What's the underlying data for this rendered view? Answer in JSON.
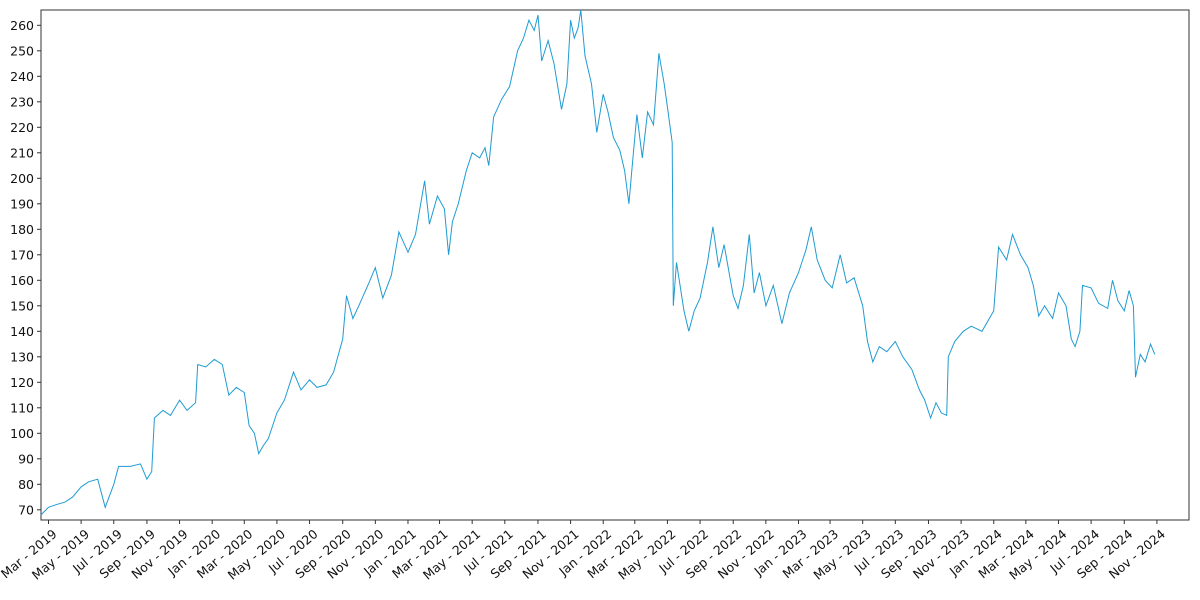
{
  "chart_data": {
    "type": "line",
    "title": "",
    "xlabel": "",
    "ylabel": "",
    "ylim": [
      66,
      266
    ],
    "xlim": [
      "2019-02-15",
      "2024-12-31"
    ],
    "grid": false,
    "legend": "none",
    "line_color": "#1f9bd2",
    "yticks": [
      70,
      80,
      90,
      100,
      110,
      120,
      130,
      140,
      150,
      160,
      170,
      180,
      190,
      200,
      210,
      220,
      230,
      240,
      250,
      260
    ],
    "xticks": [
      {
        "date": "2019-03-01",
        "label": "Mar - 2019"
      },
      {
        "date": "2019-05-01",
        "label": "May - 2019"
      },
      {
        "date": "2019-07-01",
        "label": "Jul - 2019"
      },
      {
        "date": "2019-09-01",
        "label": "Sep - 2019"
      },
      {
        "date": "2019-11-01",
        "label": "Nov - 2019"
      },
      {
        "date": "2020-01-01",
        "label": "Jan - 2020"
      },
      {
        "date": "2020-03-01",
        "label": "Mar - 2020"
      },
      {
        "date": "2020-05-01",
        "label": "May - 2020"
      },
      {
        "date": "2020-07-01",
        "label": "Jul - 2020"
      },
      {
        "date": "2020-09-01",
        "label": "Sep - 2020"
      },
      {
        "date": "2020-11-01",
        "label": "Nov - 2020"
      },
      {
        "date": "2021-01-01",
        "label": "Jan - 2021"
      },
      {
        "date": "2021-03-01",
        "label": "Mar - 2021"
      },
      {
        "date": "2021-05-01",
        "label": "May - 2021"
      },
      {
        "date": "2021-07-01",
        "label": "Jul - 2021"
      },
      {
        "date": "2021-09-01",
        "label": "Sep - 2021"
      },
      {
        "date": "2021-11-01",
        "label": "Nov - 2021"
      },
      {
        "date": "2022-01-01",
        "label": "Jan - 2022"
      },
      {
        "date": "2022-03-01",
        "label": "Mar - 2022"
      },
      {
        "date": "2022-05-01",
        "label": "May - 2022"
      },
      {
        "date": "2022-07-01",
        "label": "Jul - 2022"
      },
      {
        "date": "2022-09-01",
        "label": "Sep - 2022"
      },
      {
        "date": "2022-11-01",
        "label": "Nov - 2022"
      },
      {
        "date": "2023-01-01",
        "label": "Jan - 2023"
      },
      {
        "date": "2023-03-01",
        "label": "Mar - 2023"
      },
      {
        "date": "2023-05-01",
        "label": "May - 2023"
      },
      {
        "date": "2023-07-01",
        "label": "Jul - 2023"
      },
      {
        "date": "2023-09-01",
        "label": "Sep - 2023"
      },
      {
        "date": "2023-11-01",
        "label": "Nov - 2023"
      },
      {
        "date": "2024-01-01",
        "label": "Jan - 2024"
      },
      {
        "date": "2024-03-01",
        "label": "Mar - 2024"
      },
      {
        "date": "2024-05-01",
        "label": "May - 2024"
      },
      {
        "date": "2024-07-01",
        "label": "Jul - 2024"
      },
      {
        "date": "2024-09-01",
        "label": "Sep - 2024"
      },
      {
        "date": "2024-11-01",
        "label": "Nov - 2024"
      }
    ],
    "series": [
      {
        "points": [
          [
            "2019-02-15",
            68
          ],
          [
            "2019-03-01",
            71
          ],
          [
            "2019-03-15",
            72
          ],
          [
            "2019-04-01",
            73
          ],
          [
            "2019-04-15",
            75
          ],
          [
            "2019-05-01",
            79
          ],
          [
            "2019-05-15",
            81
          ],
          [
            "2019-06-01",
            82
          ],
          [
            "2019-06-15",
            71
          ],
          [
            "2019-07-01",
            80
          ],
          [
            "2019-07-10",
            87
          ],
          [
            "2019-08-01",
            87
          ],
          [
            "2019-08-20",
            88
          ],
          [
            "2019-09-01",
            82
          ],
          [
            "2019-09-10",
            85
          ],
          [
            "2019-09-15",
            106
          ],
          [
            "2019-10-01",
            109
          ],
          [
            "2019-10-15",
            107
          ],
          [
            "2019-11-01",
            113
          ],
          [
            "2019-11-15",
            109
          ],
          [
            "2019-12-01",
            112
          ],
          [
            "2019-12-05",
            127
          ],
          [
            "2019-12-20",
            126
          ],
          [
            "2020-01-05",
            129
          ],
          [
            "2020-01-20",
            127
          ],
          [
            "2020-02-01",
            115
          ],
          [
            "2020-02-15",
            118
          ],
          [
            "2020-03-01",
            116
          ],
          [
            "2020-03-10",
            103
          ],
          [
            "2020-03-20",
            100
          ],
          [
            "2020-03-28",
            92
          ],
          [
            "2020-04-05",
            95
          ],
          [
            "2020-04-15",
            98
          ],
          [
            "2020-05-01",
            108
          ],
          [
            "2020-05-15",
            113
          ],
          [
            "2020-06-01",
            124
          ],
          [
            "2020-06-15",
            117
          ],
          [
            "2020-07-01",
            121
          ],
          [
            "2020-07-15",
            118
          ],
          [
            "2020-08-01",
            119
          ],
          [
            "2020-08-15",
            124
          ],
          [
            "2020-09-01",
            137
          ],
          [
            "2020-09-08",
            154
          ],
          [
            "2020-09-20",
            145
          ],
          [
            "2020-10-01",
            150
          ],
          [
            "2020-10-20",
            159
          ],
          [
            "2020-11-01",
            165
          ],
          [
            "2020-11-15",
            153
          ],
          [
            "2020-12-01",
            162
          ],
          [
            "2020-12-15",
            179
          ],
          [
            "2021-01-01",
            171
          ],
          [
            "2021-01-15",
            178
          ],
          [
            "2021-02-01",
            199
          ],
          [
            "2021-02-10",
            182
          ],
          [
            "2021-02-25",
            193
          ],
          [
            "2021-03-10",
            188
          ],
          [
            "2021-03-18",
            170
          ],
          [
            "2021-03-25",
            183
          ],
          [
            "2021-04-05",
            190
          ],
          [
            "2021-04-20",
            203
          ],
          [
            "2021-05-01",
            210
          ],
          [
            "2021-05-15",
            208
          ],
          [
            "2021-05-25",
            212
          ],
          [
            "2021-06-01",
            205
          ],
          [
            "2021-06-10",
            224
          ],
          [
            "2021-06-25",
            231
          ],
          [
            "2021-07-10",
            236
          ],
          [
            "2021-07-25",
            250
          ],
          [
            "2021-08-05",
            255
          ],
          [
            "2021-08-15",
            262
          ],
          [
            "2021-08-25",
            258
          ],
          [
            "2021-09-01",
            264
          ],
          [
            "2021-09-08",
            246
          ],
          [
            "2021-09-20",
            254
          ],
          [
            "2021-10-01",
            245
          ],
          [
            "2021-10-15",
            227
          ],
          [
            "2021-10-25",
            237
          ],
          [
            "2021-11-01",
            262
          ],
          [
            "2021-11-08",
            255
          ],
          [
            "2021-11-15",
            259
          ],
          [
            "2021-11-20",
            266
          ],
          [
            "2021-11-28",
            248
          ],
          [
            "2021-12-10",
            237
          ],
          [
            "2021-12-20",
            218
          ],
          [
            "2022-01-01",
            233
          ],
          [
            "2022-01-10",
            226
          ],
          [
            "2022-01-20",
            216
          ],
          [
            "2022-02-01",
            211
          ],
          [
            "2022-02-10",
            203
          ],
          [
            "2022-02-18",
            190
          ],
          [
            "2022-02-25",
            207
          ],
          [
            "2022-03-05",
            225
          ],
          [
            "2022-03-15",
            208
          ],
          [
            "2022-03-25",
            226
          ],
          [
            "2022-04-05",
            221
          ],
          [
            "2022-04-15",
            249
          ],
          [
            "2022-04-25",
            237
          ],
          [
            "2022-05-01",
            228
          ],
          [
            "2022-05-10",
            214
          ],
          [
            "2022-05-12",
            150
          ],
          [
            "2022-05-18",
            167
          ],
          [
            "2022-06-01",
            148
          ],
          [
            "2022-06-10",
            140
          ],
          [
            "2022-06-20",
            148
          ],
          [
            "2022-07-01",
            153
          ],
          [
            "2022-07-15",
            167
          ],
          [
            "2022-07-25",
            181
          ],
          [
            "2022-08-05",
            165
          ],
          [
            "2022-08-15",
            174
          ],
          [
            "2022-09-01",
            154
          ],
          [
            "2022-09-10",
            149
          ],
          [
            "2022-09-20",
            158
          ],
          [
            "2022-10-01",
            178
          ],
          [
            "2022-10-10",
            155
          ],
          [
            "2022-10-20",
            163
          ],
          [
            "2022-11-01",
            150
          ],
          [
            "2022-11-15",
            158
          ],
          [
            "2022-12-01",
            143
          ],
          [
            "2022-12-15",
            155
          ],
          [
            "2023-01-01",
            163
          ],
          [
            "2023-01-15",
            172
          ],
          [
            "2023-01-25",
            181
          ],
          [
            "2023-02-05",
            168
          ],
          [
            "2023-02-20",
            160
          ],
          [
            "2023-03-05",
            157
          ],
          [
            "2023-03-20",
            170
          ],
          [
            "2023-04-01",
            159
          ],
          [
            "2023-04-15",
            161
          ],
          [
            "2023-05-01",
            150
          ],
          [
            "2023-05-10",
            136
          ],
          [
            "2023-05-20",
            128
          ],
          [
            "2023-06-01",
            134
          ],
          [
            "2023-06-15",
            132
          ],
          [
            "2023-07-01",
            136
          ],
          [
            "2023-07-15",
            130
          ],
          [
            "2023-08-01",
            125
          ],
          [
            "2023-08-15",
            117
          ],
          [
            "2023-08-25",
            113
          ],
          [
            "2023-09-05",
            106
          ],
          [
            "2023-09-15",
            112
          ],
          [
            "2023-09-25",
            108
          ],
          [
            "2023-10-05",
            107
          ],
          [
            "2023-10-08",
            130
          ],
          [
            "2023-10-20",
            136
          ],
          [
            "2023-11-05",
            140
          ],
          [
            "2023-11-20",
            142
          ],
          [
            "2023-12-10",
            140
          ],
          [
            "2024-01-01",
            148
          ],
          [
            "2024-01-10",
            173
          ],
          [
            "2024-01-25",
            168
          ],
          [
            "2024-02-05",
            178
          ],
          [
            "2024-02-20",
            170
          ],
          [
            "2024-03-05",
            165
          ],
          [
            "2024-03-15",
            158
          ],
          [
            "2024-03-25",
            146
          ],
          [
            "2024-04-05",
            150
          ],
          [
            "2024-04-20",
            145
          ],
          [
            "2024-05-01",
            155
          ],
          [
            "2024-05-15",
            150
          ],
          [
            "2024-05-25",
            137
          ],
          [
            "2024-06-01",
            134
          ],
          [
            "2024-06-10",
            140
          ],
          [
            "2024-06-15",
            158
          ],
          [
            "2024-07-01",
            157
          ],
          [
            "2024-07-15",
            151
          ],
          [
            "2024-08-01",
            149
          ],
          [
            "2024-08-10",
            160
          ],
          [
            "2024-08-20",
            152
          ],
          [
            "2024-09-01",
            148
          ],
          [
            "2024-09-10",
            156
          ],
          [
            "2024-09-18",
            150
          ],
          [
            "2024-09-22",
            122
          ],
          [
            "2024-10-01",
            131
          ],
          [
            "2024-10-10",
            128
          ],
          [
            "2024-10-20",
            135
          ],
          [
            "2024-10-28",
            131
          ]
        ]
      }
    ]
  }
}
